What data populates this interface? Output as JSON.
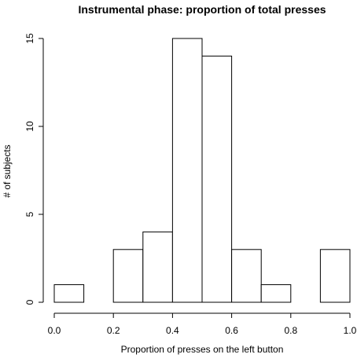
{
  "chart_data": {
    "type": "bar",
    "title": "Instrumental phase: proportion of total presses",
    "xlabel": "Proportion of presses on the left button",
    "ylabel": "# of subjects",
    "bins": [
      {
        "start": 0.0,
        "end": 0.1,
        "count": 1
      },
      {
        "start": 0.1,
        "end": 0.2,
        "count": 0
      },
      {
        "start": 0.2,
        "end": 0.3,
        "count": 3
      },
      {
        "start": 0.3,
        "end": 0.4,
        "count": 4
      },
      {
        "start": 0.4,
        "end": 0.5,
        "count": 15
      },
      {
        "start": 0.5,
        "end": 0.6,
        "count": 14
      },
      {
        "start": 0.6,
        "end": 0.7,
        "count": 3
      },
      {
        "start": 0.7,
        "end": 0.8,
        "count": 1
      },
      {
        "start": 0.8,
        "end": 0.9,
        "count": 0
      },
      {
        "start": 0.9,
        "end": 1.0,
        "count": 3
      }
    ],
    "xlim": [
      0,
      1
    ],
    "ylim": [
      0,
      15
    ],
    "x_ticks": [
      "0.0",
      "0.2",
      "0.4",
      "0.6",
      "0.8",
      "1.0"
    ],
    "y_ticks": [
      "0",
      "5",
      "10",
      "15"
    ],
    "grid": false,
    "bar_fill": "#ffffff",
    "bar_stroke": "#000000"
  }
}
